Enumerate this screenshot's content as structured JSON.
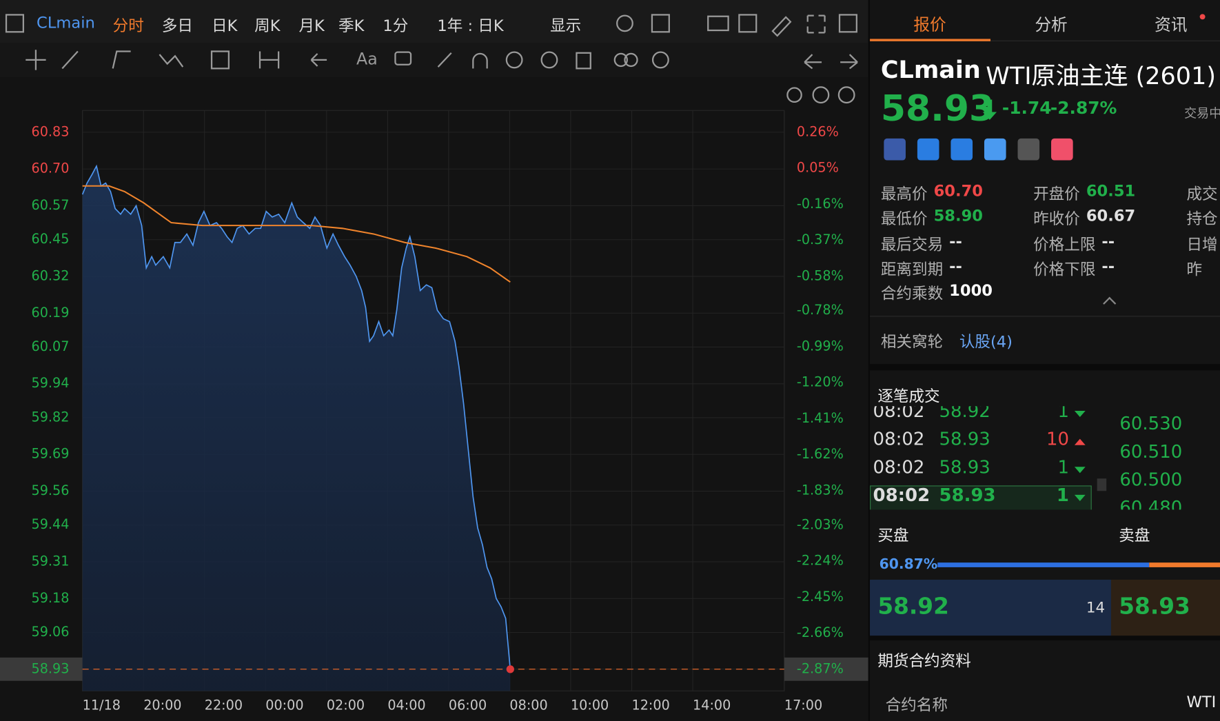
{
  "toolbar": {
    "symbol": "CLmain",
    "periods": [
      "分时",
      "多日",
      "日K",
      "周K",
      "月K",
      "季K"
    ],
    "interval": "1分",
    "range": "1年 : 日K",
    "display": "显示",
    "text_tool": "Aa"
  },
  "chart_data": {
    "type": "line",
    "series": [
      {
        "color": "#4f96f0",
        "x": [
          0,
          0.15,
          0.31,
          0.46,
          0.61,
          0.76,
          0.92,
          1.07,
          1.25,
          1.38,
          1.58,
          1.76,
          1.94,
          2.09,
          2.27,
          2.4,
          2.65,
          2.86,
          3.03,
          3.21,
          3.42,
          3.62,
          3.8,
          3.98,
          4.18,
          4.39,
          4.56,
          4.74,
          4.9,
          5.07,
          5.25,
          5.46,
          5.66,
          5.84,
          6.02,
          6.22,
          6.43,
          6.63,
          6.86,
          7.04,
          7.24,
          7.45,
          7.62,
          7.8,
          8.01,
          8.21,
          8.39,
          8.59,
          8.77,
          8.97,
          9.15,
          9.28,
          9.41,
          9.54,
          9.71,
          9.87,
          10.05,
          10.17,
          10.3,
          10.46,
          10.61,
          10.73,
          10.89,
          11.07,
          11.27,
          11.45,
          11.63,
          11.83,
          12.03,
          12.21,
          12.34,
          12.49,
          12.65,
          12.8,
          12.95,
          13.11,
          13.26,
          13.41,
          13.56,
          13.72,
          13.87,
          14.02
        ],
        "values": [
          60.61,
          60.65,
          60.68,
          60.71,
          60.64,
          60.65,
          60.62,
          60.56,
          60.54,
          60.56,
          60.54,
          60.57,
          60.5,
          60.35,
          60.39,
          60.36,
          60.39,
          60.35,
          60.44,
          60.44,
          60.47,
          60.43,
          60.51,
          60.55,
          60.5,
          60.51,
          60.49,
          60.46,
          60.44,
          60.49,
          60.5,
          60.47,
          60.49,
          60.49,
          60.55,
          60.53,
          60.54,
          60.51,
          60.58,
          60.53,
          60.51,
          60.49,
          60.53,
          60.5,
          60.42,
          60.47,
          60.43,
          60.39,
          60.36,
          60.32,
          60.27,
          60.21,
          60.09,
          60.11,
          60.16,
          60.11,
          60.13,
          60.11,
          60.2,
          60.35,
          60.42,
          60.46,
          60.39,
          60.27,
          60.29,
          60.28,
          60.2,
          60.17,
          60.16,
          60.09,
          60.0,
          59.87,
          59.7,
          59.54,
          59.43,
          59.37,
          59.29,
          59.25,
          59.18,
          59.15,
          59.11,
          58.93
        ]
      },
      {
        "color": "#f0842c",
        "x": [
          0,
          0.87,
          1.38,
          2.01,
          2.91,
          3.93,
          4.95,
          6.22,
          7.5,
          8.52,
          9.54,
          10.56,
          11.58,
          12.6,
          13.36,
          14.02
        ],
        "values": [
          60.64,
          60.64,
          60.62,
          60.58,
          60.51,
          60.5,
          60.5,
          60.5,
          60.5,
          60.49,
          60.47,
          60.44,
          60.42,
          60.39,
          60.35,
          60.3
        ]
      }
    ],
    "xlim": [
      0,
      23
    ],
    "xticks": [
      {
        "value": 0,
        "label": "11/18"
      },
      {
        "value": 2,
        "label": "20:00"
      },
      {
        "value": 4,
        "label": "22:00"
      },
      {
        "value": 6,
        "label": "00:00"
      },
      {
        "value": 8,
        "label": "02:00"
      },
      {
        "value": 10,
        "label": "04:00"
      },
      {
        "value": 12,
        "label": "06:00"
      },
      {
        "value": 14,
        "label": "08:00"
      },
      {
        "value": 16,
        "label": "10:00"
      },
      {
        "value": 18,
        "label": "12:00"
      },
      {
        "value": 20,
        "label": "14:00"
      },
      {
        "value": 23,
        "label": "17:00"
      }
    ],
    "ylim": [
      58.853,
      60.907
    ],
    "yticks": [
      60.83,
      {
        "value": 60.7,
        "label": "60.70"
      },
      60.57,
      60.45,
      60.32,
      60.19,
      60.07,
      59.94,
      59.82,
      59.69,
      59.56,
      59.44,
      59.31,
      59.18,
      59.06,
      58.93
    ],
    "y2lim": [
      -2.997,
      0.387
    ],
    "y2ticks": [
      {
        "value": 0.26,
        "label": "0.26%"
      },
      {
        "value": 0.05,
        "label": "0.05%"
      },
      {
        "value": -0.16,
        "label": "-0.16%"
      },
      {
        "value": -0.37,
        "label": "-0.37%"
      },
      {
        "value": -0.58,
        "label": "-0.58%"
      },
      {
        "value": -0.78,
        "label": "-0.78%"
      },
      {
        "value": -0.99,
        "label": "-0.99%"
      },
      {
        "value": -1.2,
        "label": "-1.20%"
      },
      {
        "value": -1.41,
        "label": "-1.41%"
      },
      {
        "value": -1.62,
        "label": "-1.62%"
      },
      {
        "value": -1.83,
        "label": "-1.83%"
      },
      {
        "value": -2.03,
        "label": "-2.03%"
      },
      {
        "value": -2.24,
        "label": "-2.24%"
      },
      {
        "value": -2.45,
        "label": "-2.45%"
      },
      {
        "value": -2.66,
        "label": "-2.66%"
      },
      {
        "value": -2.87,
        "label": "-2.87%"
      }
    ],
    "prev_close": 60.67,
    "grid": true,
    "up_color": "#f04848",
    "down_color": "#21b04b"
  },
  "quote": {
    "tabs": [
      "报价",
      "分析",
      "资讯"
    ],
    "code": "CLmain",
    "name": "WTI原油主连 (2601)",
    "price": "58.93",
    "change": "-1.74",
    "change_pct": "-2.87%",
    "status": "交易中",
    "stats": [
      [
        {
          "label": "最高价",
          "value": "60.70",
          "color": "#f04848"
        },
        {
          "label": "最低价",
          "value": "58.90",
          "color": "#21b04b"
        },
        {
          "label": "最后交易",
          "value": "--",
          "color": "#e0e0e0"
        },
        {
          "label": "距离到期",
          "value": "--",
          "color": "#e0e0e0"
        },
        {
          "label": "合约乘数",
          "value": "1000",
          "color": "#ffffff"
        }
      ],
      [
        {
          "label": "开盘价",
          "value": "60.51",
          "color": "#21b04b"
        },
        {
          "label": "昨收价",
          "value": "60.67",
          "color": "#e0e0e0"
        },
        {
          "label": "价格上限",
          "value": "--",
          "color": "#e0e0e0"
        },
        {
          "label": "价格下限",
          "value": "--",
          "color": "#e0e0e0"
        }
      ],
      [
        {
          "label": "成交"
        },
        {
          "label": "持仓"
        },
        {
          "label": "日增"
        },
        {
          "label": "昨"
        }
      ]
    ],
    "related_label": "相关窝轮",
    "related_link": "认股(4)",
    "trades_title": "逐笔成交",
    "trades": [
      {
        "time": "08:02",
        "price": "58.92",
        "volume": "1",
        "dir": "down"
      },
      {
        "time": "08:02",
        "price": "58.93",
        "volume": "10",
        "dir": "up"
      },
      {
        "time": "08:02",
        "price": "58.93",
        "volume": "1",
        "dir": "down"
      },
      {
        "time": "08:02",
        "price": "58.93",
        "volume": "1",
        "dir": "down"
      }
    ],
    "book": [
      "60.530",
      "60.510",
      "60.500",
      "60.480"
    ],
    "bid_label": "买盘",
    "ask_label": "卖盘",
    "bid_ratio": "60.87%",
    "bid_price": "58.92",
    "bid_size": "14",
    "ask_price": "58.93",
    "info_title": "期货合约资料",
    "info_label": "合约名称",
    "info_value": "WTI"
  }
}
